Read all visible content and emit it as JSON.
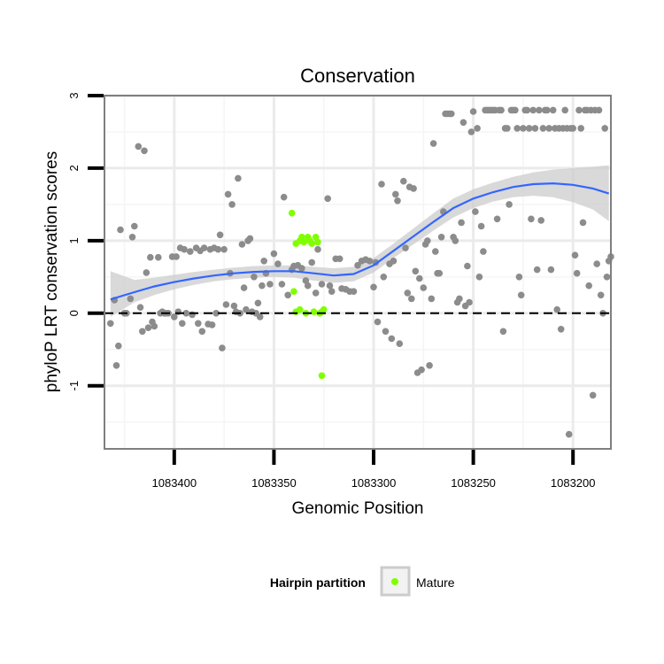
{
  "chart_data": {
    "type": "scatter",
    "title": "Conservation",
    "xlabel": "Genomic Position",
    "ylabel": "phyloP LRT conservation scores",
    "x_reversed": true,
    "xlim": [
      1083435,
      1083181
    ],
    "ylim": [
      -1.87,
      3.0
    ],
    "x_ticks": [
      1083400,
      1083350,
      1083300,
      1083250,
      1083200
    ],
    "y_ticks": [
      3,
      2,
      1,
      0,
      -1
    ],
    "reference_line": {
      "y": 0,
      "style": "dashed"
    },
    "grid": true,
    "colors": {
      "background": "#ffffff",
      "grid": "#ebebeb",
      "border": "#7f7f7f",
      "other_points": "#8c8c8c",
      "mature_points": "#7fff00",
      "smooth_line": "#3366ff",
      "ribbon": "#cccccc"
    },
    "legend": {
      "title": "Hairpin partition",
      "position": "bottom",
      "entries": [
        "Mature"
      ]
    },
    "series": [
      {
        "name": "Mature",
        "color": "#7fff00",
        "points": [
          [
            1083341,
            1.38
          ],
          [
            1083340,
            0.3
          ],
          [
            1083339,
            0.96
          ],
          [
            1083339,
            0.02
          ],
          [
            1083337,
            1.0
          ],
          [
            1083337,
            0.05
          ],
          [
            1083336,
            1.05
          ],
          [
            1083335,
            0.98
          ],
          [
            1083334,
            0.0
          ],
          [
            1083333,
            1.05
          ],
          [
            1083332,
            1.0
          ],
          [
            1083331,
            0.96
          ],
          [
            1083330,
            0.02
          ],
          [
            1083329,
            1.05
          ],
          [
            1083328,
            0.98
          ],
          [
            1083327,
            0.0
          ],
          [
            1083326,
            0.02
          ],
          [
            1083325,
            0.05
          ],
          [
            1083326,
            -0.86
          ]
        ]
      },
      {
        "color": "#8c8c8c",
        "points": [
          [
            1083432,
            -0.14
          ],
          [
            1083430,
            0.18
          ],
          [
            1083429,
            -0.72
          ],
          [
            1083428,
            -0.45
          ],
          [
            1083427,
            1.15
          ],
          [
            1083425,
            0.0
          ],
          [
            1083424,
            0.0
          ],
          [
            1083422,
            0.2
          ],
          [
            1083421,
            1.05
          ],
          [
            1083420,
            1.2
          ],
          [
            1083418,
            2.3
          ],
          [
            1083417,
            0.08
          ],
          [
            1083416,
            -0.25
          ],
          [
            1083415,
            2.24
          ],
          [
            1083414,
            0.56
          ],
          [
            1083413,
            -0.2
          ],
          [
            1083412,
            0.77
          ],
          [
            1083411,
            -0.12
          ],
          [
            1083410,
            -0.18
          ],
          [
            1083408,
            0.77
          ],
          [
            1083407,
            0.0
          ],
          [
            1083406,
            0.02
          ],
          [
            1083405,
            0.0
          ],
          [
            1083404,
            0.0
          ],
          [
            1083403,
            0.0
          ],
          [
            1083401,
            0.78
          ],
          [
            1083400,
            -0.05
          ],
          [
            1083399,
            0.78
          ],
          [
            1083398,
            0.02
          ],
          [
            1083397,
            0.9
          ],
          [
            1083396,
            -0.14
          ],
          [
            1083395,
            0.88
          ],
          [
            1083394,
            0.0
          ],
          [
            1083392,
            0.85
          ],
          [
            1083391,
            -0.02
          ],
          [
            1083389,
            0.9
          ],
          [
            1083388,
            -0.14
          ],
          [
            1083387,
            0.86
          ],
          [
            1083386,
            -0.25
          ],
          [
            1083385,
            0.9
          ],
          [
            1083383,
            -0.15
          ],
          [
            1083382,
            0.88
          ],
          [
            1083381,
            -0.16
          ],
          [
            1083380,
            0.9
          ],
          [
            1083379,
            0.0
          ],
          [
            1083378,
            0.88
          ],
          [
            1083377,
            1.08
          ],
          [
            1083376,
            -0.48
          ],
          [
            1083375,
            0.88
          ],
          [
            1083374,
            0.12
          ],
          [
            1083373,
            1.64
          ],
          [
            1083372,
            0.55
          ],
          [
            1083371,
            1.5
          ],
          [
            1083370,
            0.1
          ],
          [
            1083369,
            0.02
          ],
          [
            1083368,
            1.86
          ],
          [
            1083367,
            0.0
          ],
          [
            1083366,
            0.95
          ],
          [
            1083365,
            0.35
          ],
          [
            1083364,
            0.05
          ],
          [
            1083363,
            1.0
          ],
          [
            1083362,
            1.03
          ],
          [
            1083361,
            0.02
          ],
          [
            1083360,
            0.5
          ],
          [
            1083359,
            0.0
          ],
          [
            1083358,
            0.14
          ],
          [
            1083357,
            -0.05
          ],
          [
            1083356,
            0.38
          ],
          [
            1083355,
            0.72
          ],
          [
            1083354,
            0.55
          ],
          [
            1083352,
            0.4
          ],
          [
            1083350,
            0.82
          ],
          [
            1083348,
            0.68
          ],
          [
            1083346,
            0.4
          ],
          [
            1083345,
            1.6
          ],
          [
            1083343,
            0.25
          ],
          [
            1083341,
            0.6
          ],
          [
            1083340,
            0.65
          ],
          [
            1083338,
            0.66
          ],
          [
            1083336,
            0.62
          ],
          [
            1083334,
            0.45
          ],
          [
            1083333,
            0.38
          ],
          [
            1083331,
            0.7
          ],
          [
            1083329,
            0.28
          ],
          [
            1083328,
            0.88
          ],
          [
            1083326,
            0.4
          ],
          [
            1083323,
            1.58
          ],
          [
            1083322,
            0.38
          ],
          [
            1083321,
            0.3
          ],
          [
            1083319,
            0.75
          ],
          [
            1083317,
            0.75
          ],
          [
            1083316,
            0.34
          ],
          [
            1083314,
            0.33
          ],
          [
            1083312,
            0.3
          ],
          [
            1083310,
            0.3
          ],
          [
            1083308,
            0.66
          ],
          [
            1083306,
            0.72
          ],
          [
            1083304,
            0.74
          ],
          [
            1083302,
            0.72
          ],
          [
            1083300,
            0.36
          ],
          [
            1083299,
            0.7
          ],
          [
            1083298,
            -0.12
          ],
          [
            1083296,
            1.78
          ],
          [
            1083295,
            0.5
          ],
          [
            1083294,
            -0.25
          ],
          [
            1083292,
            0.68
          ],
          [
            1083291,
            -0.35
          ],
          [
            1083290,
            0.72
          ],
          [
            1083289,
            1.64
          ],
          [
            1083288,
            1.55
          ],
          [
            1083287,
            -0.42
          ],
          [
            1083285,
            1.82
          ],
          [
            1083284,
            0.9
          ],
          [
            1083283,
            0.28
          ],
          [
            1083282,
            1.74
          ],
          [
            1083281,
            0.2
          ],
          [
            1083280,
            1.72
          ],
          [
            1083279,
            0.58
          ],
          [
            1083278,
            -0.82
          ],
          [
            1083277,
            0.48
          ],
          [
            1083276,
            -0.78
          ],
          [
            1083275,
            0.35
          ],
          [
            1083274,
            0.95
          ],
          [
            1083273,
            1.0
          ],
          [
            1083272,
            -0.72
          ],
          [
            1083271,
            0.2
          ],
          [
            1083270,
            2.34
          ],
          [
            1083269,
            0.85
          ],
          [
            1083268,
            0.55
          ],
          [
            1083267,
            0.55
          ],
          [
            1083266,
            1.05
          ],
          [
            1083265,
            1.4
          ],
          [
            1083264,
            2.75
          ],
          [
            1083263,
            2.75
          ],
          [
            1083262,
            2.75
          ],
          [
            1083261,
            2.75
          ],
          [
            1083260,
            1.05
          ],
          [
            1083259,
            1.0
          ],
          [
            1083258,
            0.15
          ],
          [
            1083257,
            0.2
          ],
          [
            1083256,
            1.25
          ],
          [
            1083255,
            2.63
          ],
          [
            1083254,
            0.1
          ],
          [
            1083253,
            0.65
          ],
          [
            1083252,
            0.15
          ],
          [
            1083251,
            2.5
          ],
          [
            1083250,
            2.78
          ],
          [
            1083249,
            1.4
          ],
          [
            1083248,
            2.55
          ],
          [
            1083247,
            0.5
          ],
          [
            1083246,
            1.2
          ],
          [
            1083245,
            0.85
          ],
          [
            1083244,
            2.8
          ],
          [
            1083243,
            2.8
          ],
          [
            1083242,
            2.8
          ],
          [
            1083241,
            2.8
          ],
          [
            1083240,
            2.8
          ],
          [
            1083239,
            2.8
          ],
          [
            1083238,
            1.3
          ],
          [
            1083237,
            2.8
          ],
          [
            1083236,
            2.8
          ],
          [
            1083235,
            -0.25
          ],
          [
            1083234,
            2.55
          ],
          [
            1083233,
            2.55
          ],
          [
            1083232,
            1.5
          ],
          [
            1083231,
            2.8
          ],
          [
            1083230,
            2.8
          ],
          [
            1083229,
            2.8
          ],
          [
            1083228,
            2.55
          ],
          [
            1083227,
            0.5
          ],
          [
            1083226,
            0.25
          ],
          [
            1083225,
            2.55
          ],
          [
            1083224,
            2.8
          ],
          [
            1083223,
            2.8
          ],
          [
            1083222,
            2.55
          ],
          [
            1083221,
            1.3
          ],
          [
            1083220,
            2.8
          ],
          [
            1083219,
            2.55
          ],
          [
            1083218,
            0.6
          ],
          [
            1083217,
            2.8
          ],
          [
            1083216,
            1.28
          ],
          [
            1083215,
            2.55
          ],
          [
            1083214,
            2.8
          ],
          [
            1083213,
            2.8
          ],
          [
            1083212,
            2.55
          ],
          [
            1083211,
            0.6
          ],
          [
            1083210,
            2.8
          ],
          [
            1083209,
            2.55
          ],
          [
            1083208,
            0.05
          ],
          [
            1083207,
            2.55
          ],
          [
            1083206,
            -0.22
          ],
          [
            1083205,
            2.55
          ],
          [
            1083204,
            2.8
          ],
          [
            1083203,
            2.55
          ],
          [
            1083202,
            -1.67
          ],
          [
            1083201,
            2.55
          ],
          [
            1083200,
            2.55
          ],
          [
            1083199,
            0.8
          ],
          [
            1083198,
            0.55
          ],
          [
            1083197,
            2.8
          ],
          [
            1083196,
            2.55
          ],
          [
            1083195,
            1.25
          ],
          [
            1083194,
            2.8
          ],
          [
            1083193,
            2.8
          ],
          [
            1083192,
            0.38
          ],
          [
            1083191,
            2.8
          ],
          [
            1083190,
            -1.13
          ],
          [
            1083189,
            2.8
          ],
          [
            1083188,
            0.68
          ],
          [
            1083187,
            2.8
          ],
          [
            1083186,
            0.25
          ],
          [
            1083185,
            0.0
          ],
          [
            1083184,
            2.55
          ],
          [
            1083183,
            0.5
          ],
          [
            1083182,
            0.72
          ],
          [
            1083181,
            0.78
          ]
        ]
      }
    ],
    "smooth": {
      "color": "#3366ff",
      "x": [
        1083432,
        1083420,
        1083410,
        1083400,
        1083390,
        1083380,
        1083370,
        1083360,
        1083350,
        1083340,
        1083330,
        1083320,
        1083310,
        1083300,
        1083290,
        1083280,
        1083270,
        1083260,
        1083250,
        1083240,
        1083230,
        1083220,
        1083210,
        1083200,
        1083190,
        1083182
      ],
      "y": [
        0.19,
        0.29,
        0.37,
        0.43,
        0.48,
        0.52,
        0.55,
        0.57,
        0.58,
        0.58,
        0.55,
        0.52,
        0.54,
        0.66,
        0.86,
        1.06,
        1.26,
        1.45,
        1.58,
        1.67,
        1.74,
        1.78,
        1.79,
        1.77,
        1.72,
        1.65
      ],
      "lower": [
        -0.05,
        0.15,
        0.25,
        0.33,
        0.39,
        0.44,
        0.47,
        0.49,
        0.5,
        0.49,
        0.45,
        0.42,
        0.44,
        0.56,
        0.76,
        0.95,
        1.14,
        1.32,
        1.45,
        1.54,
        1.6,
        1.62,
        1.6,
        1.53,
        1.43,
        1.27
      ],
      "upper": [
        0.58,
        0.46,
        0.49,
        0.53,
        0.57,
        0.6,
        0.63,
        0.65,
        0.66,
        0.66,
        0.64,
        0.62,
        0.64,
        0.76,
        0.96,
        1.17,
        1.38,
        1.58,
        1.71,
        1.8,
        1.88,
        1.94,
        1.98,
        2.0,
        2.02,
        2.04
      ]
    }
  }
}
